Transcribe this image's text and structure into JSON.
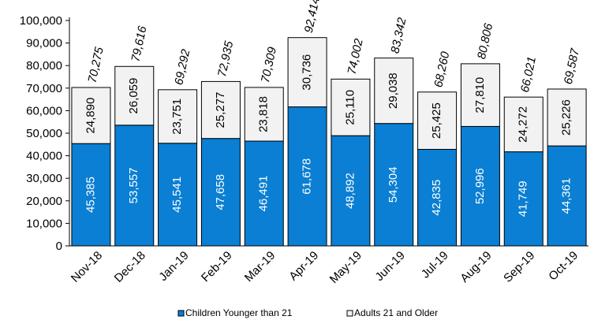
{
  "chart_data": {
    "type": "bar",
    "stacked": true,
    "title": "",
    "xlabel": "",
    "ylabel": "",
    "ylim": [
      0,
      100000
    ],
    "y_ticks": [
      "0",
      "10,000",
      "20,000",
      "30,000",
      "40,000",
      "50,000",
      "60,000",
      "70,000",
      "80,000",
      "90,000",
      "100,000"
    ],
    "grid": false,
    "legend_position": "bottom",
    "categories": [
      "Nov-18",
      "Dec-18",
      "Jan-19",
      "Feb-19",
      "Mar-19",
      "Apr-19",
      "May-19",
      "Jun-19",
      "Jul-19",
      "Aug-19",
      "Sep-19",
      "Oct-19"
    ],
    "series": [
      {
        "name": "Children Younger than 21",
        "color": "#0a7fd3",
        "values": [
          45385,
          53557,
          45541,
          47658,
          46491,
          61678,
          48892,
          54304,
          42835,
          52996,
          41749,
          44361
        ],
        "labels": [
          "45,385",
          "53,557",
          "45,541",
          "47,658",
          "46,491",
          "61,678",
          "48,892",
          "54,304",
          "42,835",
          "52,996",
          "41,749",
          "44,361"
        ]
      },
      {
        "name": "Adults 21 and Older",
        "color": "#f2f2f2",
        "values": [
          24890,
          26059,
          23751,
          25277,
          23818,
          30736,
          25110,
          29038,
          25425,
          27810,
          24272,
          25226
        ],
        "labels": [
          "24,890",
          "26,059",
          "23,751",
          "25,277",
          "23,818",
          "30,736",
          "25,110",
          "29,038",
          "25,425",
          "27,810",
          "24,272",
          "25,226"
        ]
      }
    ],
    "totals": [
      70275,
      79616,
      69292,
      72935,
      70309,
      92414,
      74002,
      83342,
      68260,
      80806,
      66021,
      69587
    ],
    "total_labels": [
      "70,275",
      "79,616",
      "69,292",
      "72,935",
      "70,309",
      "92,414",
      "74,002",
      "83,342",
      "68,260",
      "80,806",
      "66,021",
      "69,587"
    ]
  }
}
